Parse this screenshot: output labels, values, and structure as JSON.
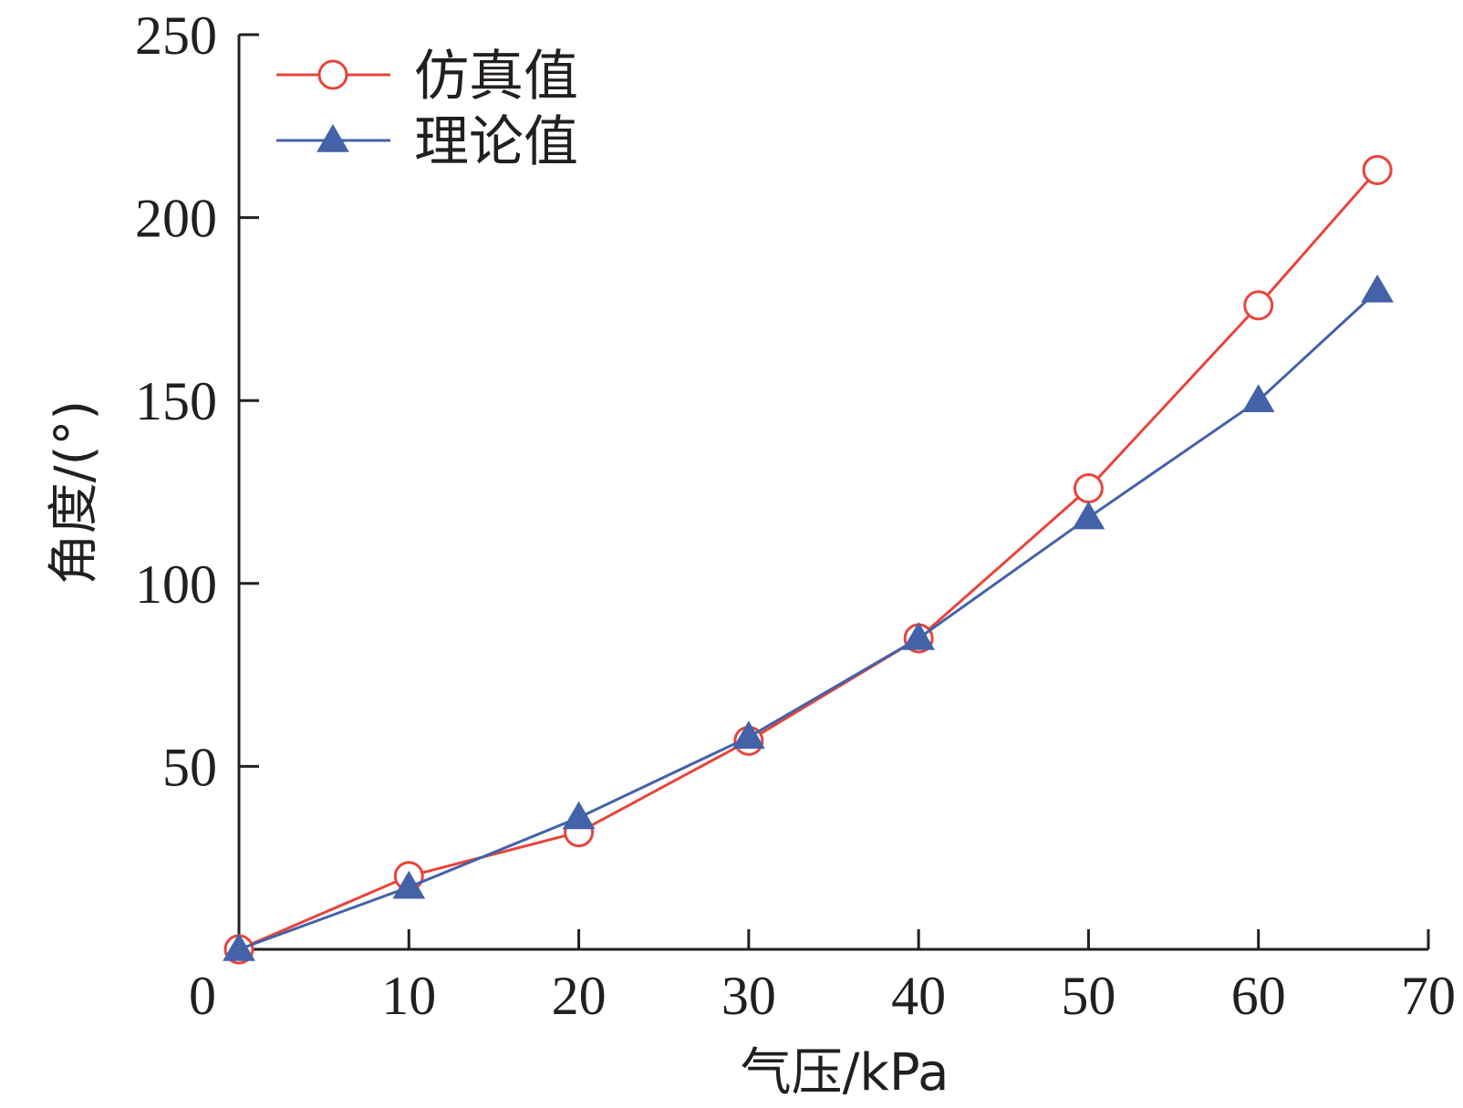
{
  "chart_data": {
    "type": "line",
    "xlabel": "气压/kPa",
    "ylabel": "角度/(°)",
    "xlim": [
      0,
      70
    ],
    "ylim": [
      0,
      250
    ],
    "x_ticks": [
      "0",
      "10",
      "20",
      "30",
      "40",
      "50",
      "60",
      "70"
    ],
    "y_ticks": [
      "50",
      "100",
      "150",
      "200",
      "250"
    ],
    "grid": false,
    "legend_position": "top-left",
    "series": [
      {
        "name": "仿真值",
        "color": "#e8443a",
        "marker": "open-circle",
        "x": [
          0,
          10,
          20,
          30,
          40,
          50,
          60,
          67
        ],
        "y": [
          0,
          20,
          32,
          57,
          85,
          126,
          176,
          213
        ]
      },
      {
        "name": "理论值",
        "color": "#4462a8",
        "marker": "filled-triangle",
        "x": [
          0,
          10,
          20,
          30,
          40,
          50,
          60,
          67
        ],
        "y": [
          0,
          17,
          36,
          58,
          85,
          118,
          150,
          180
        ]
      }
    ]
  }
}
